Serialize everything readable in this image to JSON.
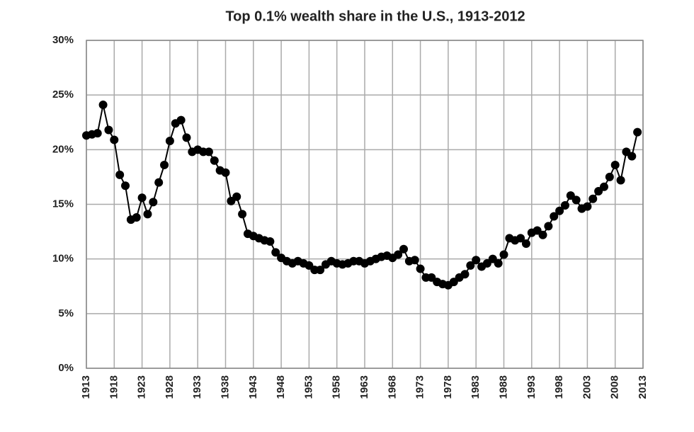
{
  "chart_data": {
    "type": "line",
    "title": "Top 0.1% wealth share in the U.S., 1913-2012",
    "x": [
      1913,
      1914,
      1915,
      1916,
      1917,
      1918,
      1919,
      1920,
      1921,
      1922,
      1923,
      1924,
      1925,
      1926,
      1927,
      1928,
      1929,
      1930,
      1931,
      1932,
      1933,
      1934,
      1935,
      1936,
      1937,
      1938,
      1939,
      1940,
      1941,
      1942,
      1943,
      1944,
      1945,
      1946,
      1947,
      1948,
      1949,
      1950,
      1951,
      1952,
      1953,
      1954,
      1955,
      1956,
      1957,
      1958,
      1959,
      1960,
      1961,
      1962,
      1963,
      1964,
      1965,
      1966,
      1967,
      1968,
      1969,
      1970,
      1971,
      1972,
      1973,
      1974,
      1975,
      1976,
      1977,
      1978,
      1979,
      1980,
      1981,
      1982,
      1983,
      1984,
      1985,
      1986,
      1987,
      1988,
      1989,
      1990,
      1991,
      1992,
      1993,
      1994,
      1995,
      1996,
      1997,
      1998,
      1999,
      2000,
      2001,
      2002,
      2003,
      2004,
      2005,
      2006,
      2007,
      2008,
      2009,
      2010,
      2011,
      2012
    ],
    "series": [
      {
        "color": "#000000",
        "values": [
          21.3,
          21.4,
          21.5,
          24.1,
          21.8,
          20.9,
          17.7,
          16.7,
          13.6,
          13.8,
          15.6,
          14.1,
          15.2,
          17.0,
          18.6,
          20.8,
          22.4,
          22.7,
          21.1,
          19.8,
          20.0,
          19.8,
          19.8,
          19.0,
          18.1,
          17.9,
          15.3,
          15.7,
          14.1,
          12.3,
          12.1,
          11.9,
          11.7,
          11.6,
          10.6,
          10.1,
          9.8,
          9.6,
          9.8,
          9.6,
          9.4,
          9.0,
          9.0,
          9.5,
          9.8,
          9.6,
          9.5,
          9.6,
          9.8,
          9.8,
          9.6,
          9.8,
          10.0,
          10.2,
          10.3,
          10.1,
          10.4,
          10.9,
          9.8,
          9.9,
          9.1,
          8.3,
          8.3,
          7.9,
          7.7,
          7.6,
          7.9,
          8.3,
          8.6,
          9.4,
          9.9,
          9.3,
          9.6,
          10.0,
          9.6,
          10.4,
          11.9,
          11.7,
          11.9,
          11.4,
          12.4,
          12.6,
          12.2,
          13.0,
          13.9,
          14.4,
          14.9,
          15.8,
          15.4,
          14.6,
          14.8,
          15.5,
          16.2,
          16.6,
          17.5,
          18.6,
          17.2,
          19.8,
          19.4,
          21.6
        ]
      }
    ],
    "xlim": [
      1913,
      2013
    ],
    "xticks": [
      1913,
      1918,
      1923,
      1928,
      1933,
      1938,
      1943,
      1948,
      1953,
      1958,
      1963,
      1968,
      1973,
      1978,
      1983,
      1988,
      1993,
      1998,
      2003,
      2008,
      2013
    ],
    "ylim": [
      0,
      30
    ],
    "yticks": [
      {
        "value": 0,
        "label": "0%"
      },
      {
        "value": 5,
        "label": "5%"
      },
      {
        "value": 10,
        "label": "10%"
      },
      {
        "value": 15,
        "label": "15%"
      },
      {
        "value": 20,
        "label": "20%"
      },
      {
        "value": 25,
        "label": "25%"
      },
      {
        "value": 30,
        "label": "30%"
      }
    ],
    "grid": true
  }
}
